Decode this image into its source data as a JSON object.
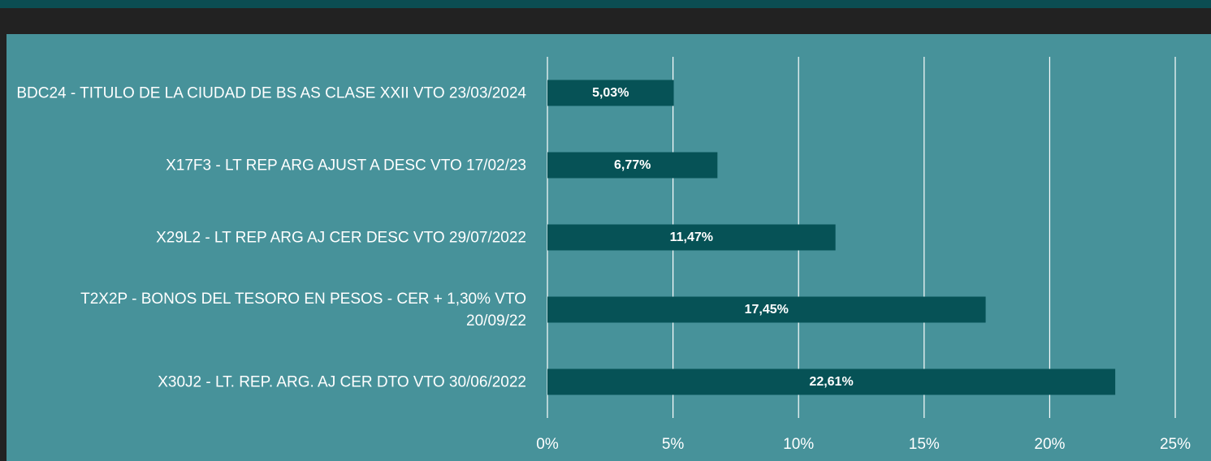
{
  "chart_data": {
    "type": "bar",
    "orientation": "horizontal",
    "categories": [
      "BDC24 - TITULO DE LA CIUDAD DE BS AS CLASE XXII VTO 23/03/2024",
      "X17F3 - LT REP ARG AJUST A DESC VTO 17/02/23",
      "X29L2 - LT REP ARG AJ CER DESC VTO 29/07/2022",
      "T2X2P - BONOS DEL TESORO EN PESOS - CER + 1,30% VTO 20/09/22",
      "X30J2 - LT. REP. ARG. AJ CER DTO VTO 30/06/2022"
    ],
    "values": [
      5.03,
      6.77,
      11.47,
      17.45,
      22.61
    ],
    "value_labels": [
      "5,03%",
      "6,77%",
      "11,47%",
      "17,45%",
      "22,61%"
    ],
    "color": "#065256",
    "xlim": [
      0,
      25
    ],
    "xticks": [
      {
        "value": 0,
        "label": "0%"
      },
      {
        "value": 5,
        "label": "5%"
      },
      {
        "value": 10,
        "label": "10%"
      },
      {
        "value": 15,
        "label": "15%"
      },
      {
        "value": 20,
        "label": "20%"
      },
      {
        "value": 25,
        "label": "25%"
      }
    ],
    "grid": true
  }
}
